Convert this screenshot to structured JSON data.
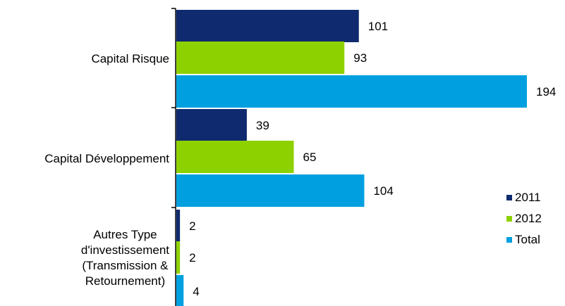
{
  "chart_data": {
    "type": "bar",
    "orientation": "horizontal",
    "categories": [
      [
        "Capital Risque"
      ],
      [
        "Capital Développement"
      ],
      [
        "Autres Type",
        "d'investissement",
        "(Transmission &",
        "Retournement)"
      ]
    ],
    "series": [
      {
        "name": "2011",
        "values": [
          101,
          39,
          2
        ],
        "color": "#0f2a6e"
      },
      {
        "name": "2012",
        "values": [
          93,
          65,
          2
        ],
        "color": "#8ed100"
      },
      {
        "name": "Total",
        "values": [
          194,
          104,
          4
        ],
        "color": "#00a0e0"
      }
    ],
    "data_labels": true,
    "legend_position": "bottom-right",
    "grid": false,
    "xlim": [
      0,
      194
    ]
  }
}
